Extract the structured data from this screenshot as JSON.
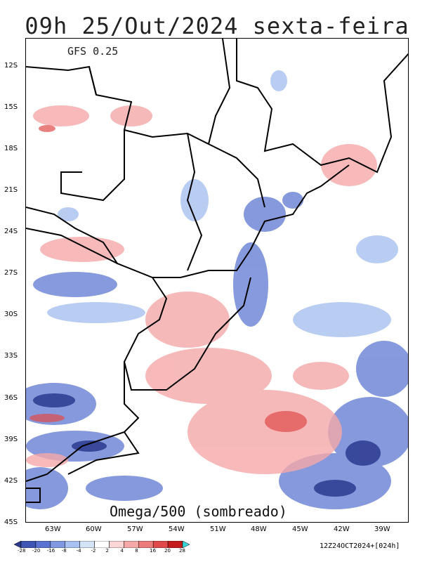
{
  "title": "09h 25/Out/2024 sexta-feira",
  "model": "GFS 0.25",
  "field": "Omega/500 (sombreado)",
  "valid": "12Z24OCT2024+[024h]",
  "lat_labels": [
    "12S",
    "15S",
    "18S",
    "21S",
    "24S",
    "27S",
    "30S",
    "33S",
    "36S",
    "39S",
    "42S",
    "45S"
  ],
  "lon_labels": [
    "63W",
    "60W",
    "57W",
    "54W",
    "51W",
    "48W",
    "45W",
    "42W",
    "39W"
  ],
  "colorbar": {
    "labels": [
      "-28",
      "-20",
      "-16",
      "-8",
      "-4",
      "-2",
      "2",
      "4",
      "8",
      "16",
      "20",
      "28"
    ],
    "colors": [
      "#2b3a8f",
      "#3f55b4",
      "#5a73d0",
      "#7f98e0",
      "#a8c1f0",
      "#d3e3f8",
      "#ffffff",
      "#fbd6d6",
      "#f5a8a8",
      "#ec7b7b",
      "#e04a4a",
      "#c41c1c",
      "#37d7d7"
    ]
  }
}
